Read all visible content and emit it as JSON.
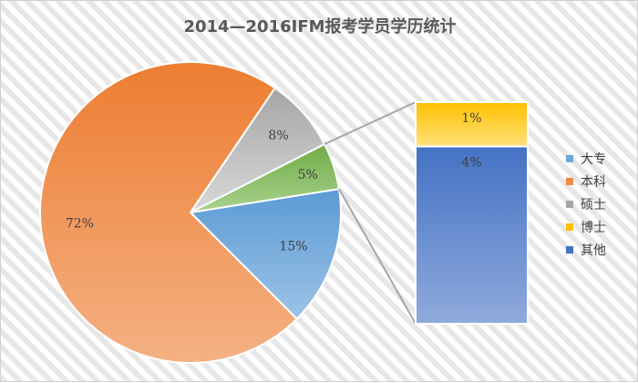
{
  "chart_data": {
    "type": "pie",
    "title": "2014—2016IFM报考学员学历统计",
    "slices": [
      {
        "name": "大专",
        "value": 15,
        "label": "15%",
        "color": "#6fa8dc"
      },
      {
        "name": "本科",
        "value": 72,
        "label": "72%",
        "color": "#ed8b46"
      },
      {
        "name": "硕士",
        "value": 8,
        "label": "8%",
        "color": "#b4b4b4"
      },
      {
        "name": "其他",
        "value": 5,
        "label": "5%",
        "color": "#6aaa46",
        "breakdown": true
      }
    ],
    "breakdown_bar": {
      "segments": [
        {
          "name": "博士",
          "value": 1,
          "label": "1%",
          "color": "#ffc000"
        },
        {
          "name": "其他",
          "value": 4,
          "label": "4%",
          "color": "#4472c4"
        }
      ]
    },
    "legend": {
      "position": "right",
      "items": [
        {
          "name": "大专",
          "color": "#6fa8dc"
        },
        {
          "name": "本科",
          "color": "#ed8b46"
        },
        {
          "name": "硕士",
          "color": "#a5a5a5"
        },
        {
          "name": "博士",
          "color": "#ffc000"
        },
        {
          "name": "其他",
          "color": "#4472c4"
        }
      ]
    }
  }
}
